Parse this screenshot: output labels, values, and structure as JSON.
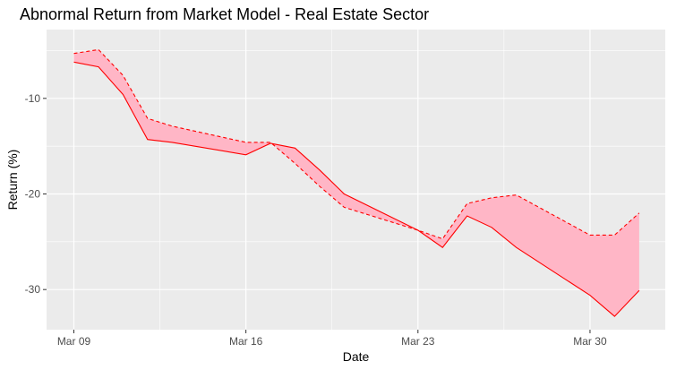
{
  "chart_data": {
    "type": "area",
    "title": "Abnormal Return from Market Model - Real Estate Sector",
    "xlabel": "Date",
    "ylabel": "Return (%)",
    "x_ticks": [
      "Mar 09",
      "Mar 16",
      "Mar 23",
      "Mar 30"
    ],
    "y_ticks": [
      -10,
      -20,
      -30
    ],
    "ylim": [
      -34.2,
      -2.8
    ],
    "grid": true,
    "fill_color": "#ffb6c6",
    "line_color": "#ff0000",
    "panel_background": "#ebebeb",
    "x": [
      "2020-03-09",
      "2020-03-10",
      "2020-03-11",
      "2020-03-12",
      "2020-03-13",
      "2020-03-16",
      "2020-03-17",
      "2020-03-18",
      "2020-03-19",
      "2020-03-20",
      "2020-03-23",
      "2020-03-24",
      "2020-03-25",
      "2020-03-26",
      "2020-03-27",
      "2020-03-30",
      "2020-03-31",
      "2020-04-01"
    ],
    "series": [
      {
        "style": "solid",
        "values": [
          -6.2,
          -6.7,
          -9.6,
          -14.3,
          -14.6,
          -15.9,
          -14.7,
          -15.2,
          -17.5,
          -20.0,
          -23.8,
          -25.6,
          -22.3,
          -23.5,
          -25.6,
          -30.6,
          -32.8,
          -30.1
        ]
      },
      {
        "style": "dashed",
        "values": [
          -5.3,
          -4.9,
          -7.6,
          -12.1,
          -12.9,
          -14.6,
          -14.6,
          -16.8,
          -19.2,
          -21.4,
          -23.8,
          -24.7,
          -21.0,
          -20.4,
          -20.1,
          -24.3,
          -24.3,
          -22.0
        ]
      }
    ]
  }
}
